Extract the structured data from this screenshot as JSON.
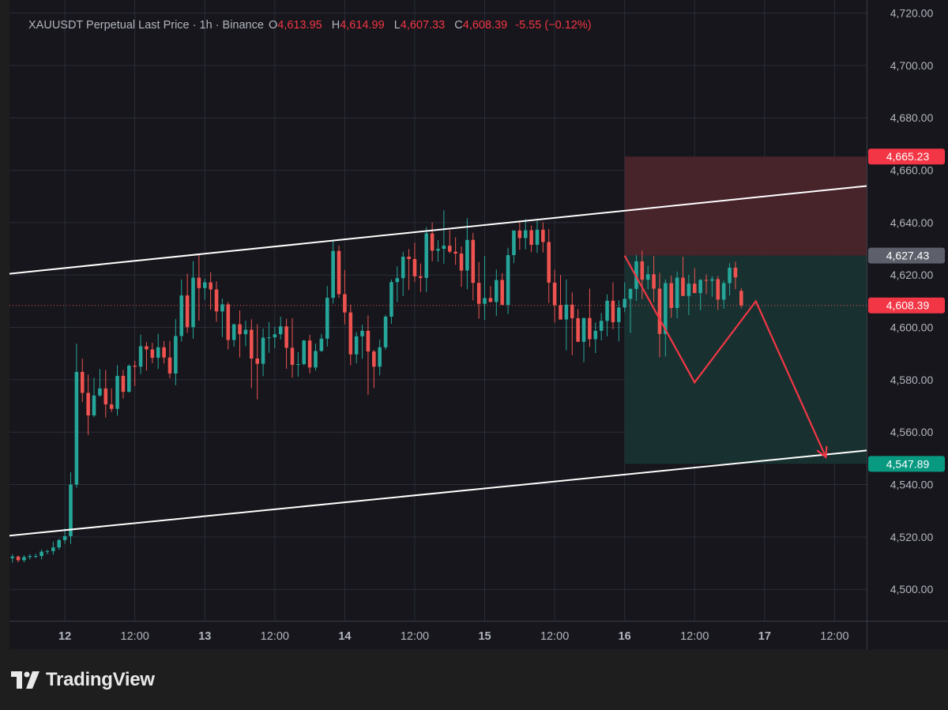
{
  "legend": {
    "symbol": "XAUUSDT Perpetual Last Price · 1h · Binance",
    "open_key": "O",
    "open": "4,613.95",
    "high_key": "H",
    "high": "4,614.99",
    "low_key": "L",
    "low": "4,607.33",
    "close_key": "C",
    "close": "4,608.39",
    "change": "-5.55 (−0.12%)"
  },
  "branding": "TradingView",
  "colors": {
    "background": "#16161c",
    "grid": "#2a2e39",
    "up": "#26a69a",
    "down": "#ef5350",
    "channel_line": "#ffffff",
    "stop_zone": "#4a242b",
    "target_zone": "#183332",
    "projection": "#f23645"
  },
  "chart_data": {
    "type": "candlestick",
    "y_axis": {
      "ylim": [
        4488,
        4725
      ],
      "ticks": [
        "4,500.00",
        "4,520.00",
        "4,540.00",
        "4,560.00",
        "4,580.00",
        "4,600.00",
        "4,620.00",
        "4,640.00",
        "4,660.00",
        "4,680.00",
        "4,700.00",
        "4,720.00"
      ],
      "tick_values": [
        4500,
        4520,
        4540,
        4560,
        4580,
        4600,
        4620,
        4640,
        4660,
        4680,
        4700,
        4720
      ]
    },
    "x_axis": {
      "labels": [
        "12",
        "12:00",
        "13",
        "12:00",
        "14",
        "12:00",
        "15",
        "12:00",
        "16",
        "12:00",
        "17",
        "12:00"
      ],
      "label_hours": [
        0,
        12,
        24,
        36,
        48,
        60,
        72,
        84,
        96,
        108,
        120,
        132
      ],
      "bold": [
        true,
        false,
        true,
        false,
        true,
        false,
        true,
        false,
        true,
        false,
        true,
        false
      ],
      "xlim_hours": [
        -9.5,
        137.5
      ]
    },
    "price_labels": [
      {
        "text": "4,665.23",
        "value": 4665.23,
        "kind": "stop"
      },
      {
        "text": "4,627.43",
        "value": 4627.43,
        "kind": "entry"
      },
      {
        "text": "4,608.39",
        "value": 4608.39,
        "kind": "last"
      },
      {
        "text": "4,547.89",
        "value": 4547.89,
        "kind": "target"
      }
    ],
    "last_price": 4608.39,
    "position": {
      "start_hour": 96,
      "end_hour": 137.5,
      "entry": 4627.43,
      "stop": 4665.23,
      "target": 4547.89
    },
    "channel": {
      "upper": [
        [
          -9.5,
          4620.5
        ],
        [
          137.5,
          4654.0
        ]
      ],
      "lower": [
        [
          -9.5,
          4520.5
        ],
        [
          137.5,
          4553.0
        ]
      ]
    },
    "projection": [
      [
        96,
        4627.4
      ],
      [
        108,
        4579
      ],
      [
        118.5,
        4610
      ],
      [
        130.5,
        4550.5
      ]
    ],
    "candles_start_hour": -9,
    "candles": [
      [
        4511.9,
        4513.4,
        4510.2,
        4512.5
      ],
      [
        4512.5,
        4512.9,
        4510.3,
        4511.1
      ],
      [
        4511.1,
        4513.0,
        4510.3,
        4512.3
      ],
      [
        4512.3,
        4513.4,
        4511.4,
        4512.7
      ],
      [
        4512.7,
        4513.6,
        4511.9,
        4512.7
      ],
      [
        4512.7,
        4515.2,
        4511.4,
        4514.4
      ],
      [
        4514.4,
        4515.1,
        4513.4,
        4514.6
      ],
      [
        4514.6,
        4518.2,
        4513.2,
        4516.0
      ],
      [
        4516.0,
        4519.3,
        4515.1,
        4518.8
      ],
      [
        4518.8,
        4523.4,
        4517.4,
        4520.3
      ],
      [
        4520.3,
        4544.7,
        4517.3,
        4540.0
      ],
      [
        4540.0,
        4593.8,
        4538.8,
        4583.0
      ],
      [
        4583.0,
        4588.1,
        4571.5,
        4575.0
      ],
      [
        4575.0,
        4582.0,
        4558.9,
        4566.4
      ],
      [
        4566.4,
        4580.8,
        4565.7,
        4574.0
      ],
      [
        4574.0,
        4584.1,
        4573.5,
        4576.7
      ],
      [
        4576.7,
        4583.7,
        4565.6,
        4570.6
      ],
      [
        4570.6,
        4576.7,
        4567.7,
        4568.9
      ],
      [
        4568.9,
        4585.6,
        4566.3,
        4581.5
      ],
      [
        4581.5,
        4583.8,
        4572.8,
        4575.4
      ],
      [
        4575.4,
        4585.9,
        4575.1,
        4585.4
      ],
      [
        4585.4,
        4587.3,
        4577.6,
        4585.0
      ],
      [
        4585.0,
        4597.3,
        4582.2,
        4592.8
      ],
      [
        4592.8,
        4594.4,
        4583.5,
        4591.6
      ],
      [
        4591.6,
        4594.1,
        4586.3,
        4588.4
      ],
      [
        4588.4,
        4597.6,
        4584.2,
        4592.4
      ],
      [
        4592.4,
        4594.8,
        4586.2,
        4588.5
      ],
      [
        4588.5,
        4594.8,
        4580.6,
        4582.4
      ],
      [
        4582.4,
        4603.2,
        4577.9,
        4596.7
      ],
      [
        4596.7,
        4618.3,
        4594.6,
        4612.2
      ],
      [
        4612.2,
        4620.5,
        4597.9,
        4600.1
      ],
      [
        4600.1,
        4625.3,
        4595.7,
        4619.0
      ],
      [
        4619.0,
        4627.8,
        4602.6,
        4615.0
      ],
      [
        4615.0,
        4618.6,
        4610.6,
        4617.2
      ],
      [
        4617.2,
        4621.1,
        4606.7,
        4614.5
      ],
      [
        4614.5,
        4617.6,
        4602.1,
        4606.1
      ],
      [
        4606.1,
        4611.0,
        4596.3,
        4608.8
      ],
      [
        4608.8,
        4609.7,
        4591.6,
        4595.2
      ],
      [
        4595.2,
        4601.4,
        4592.7,
        4601.2
      ],
      [
        4601.2,
        4606.5,
        4588.5,
        4597.4
      ],
      [
        4597.4,
        4602.6,
        4592.8,
        4599.1
      ],
      [
        4599.1,
        4603.1,
        4576.8,
        4588.1
      ],
      [
        4588.1,
        4601.2,
        4572.5,
        4586.1
      ],
      [
        4586.1,
        4599.6,
        4581.4,
        4596.1
      ],
      [
        4596.1,
        4602.1,
        4590.3,
        4596.2
      ],
      [
        4596.2,
        4600.2,
        4592.0,
        4597.4
      ],
      [
        4597.4,
        4604.1,
        4595.4,
        4600.4
      ],
      [
        4600.4,
        4603.3,
        4584.2,
        4592.2
      ],
      [
        4592.2,
        4603.5,
        4580.8,
        4585.7
      ],
      [
        4585.7,
        4590.6,
        4581.2,
        4586.0
      ],
      [
        4586.0,
        4595.2,
        4585.5,
        4595.0
      ],
      [
        4595.0,
        4597.2,
        4582.4,
        4584.7
      ],
      [
        4584.7,
        4593.8,
        4583.5,
        4591.0
      ],
      [
        4591.0,
        4597.5,
        4590.6,
        4595.7
      ],
      [
        4595.7,
        4615.8,
        4592.7,
        4611.3
      ],
      [
        4611.3,
        4633.1,
        4609.1,
        4629.2
      ],
      [
        4629.2,
        4631.2,
        4611.3,
        4612.7
      ],
      [
        4612.7,
        4621.9,
        4601.2,
        4605.7
      ],
      [
        4605.7,
        4608.7,
        4585.5,
        4589.7
      ],
      [
        4589.7,
        4598.2,
        4586.3,
        4596.6
      ],
      [
        4596.6,
        4601.0,
        4588.0,
        4598.7
      ],
      [
        4598.7,
        4604.6,
        4574.2,
        4590.8
      ],
      [
        4590.8,
        4591.4,
        4576.9,
        4585.0
      ],
      [
        4585.0,
        4595.3,
        4581.7,
        4592.4
      ],
      [
        4592.4,
        4604.8,
        4591.5,
        4604.1
      ],
      [
        4604.1,
        4618.3,
        4601.4,
        4617.3
      ],
      [
        4617.3,
        4623.3,
        4609.7,
        4618.8
      ],
      [
        4618.8,
        4628.9,
        4612.0,
        4627.0
      ],
      [
        4627.0,
        4629.9,
        4614.3,
        4626.1
      ],
      [
        4626.1,
        4632.3,
        4617.3,
        4619.5
      ],
      [
        4619.5,
        4624.4,
        4613.5,
        4618.9
      ],
      [
        4618.9,
        4638.3,
        4613.5,
        4635.9
      ],
      [
        4635.9,
        4640.1,
        4625.2,
        4629.3
      ],
      [
        4629.3,
        4633.3,
        4625.1,
        4630.0
      ],
      [
        4630.0,
        4644.7,
        4624.3,
        4631.2
      ],
      [
        4631.2,
        4637.1,
        4628.3,
        4628.9
      ],
      [
        4628.9,
        4634.4,
        4623.9,
        4628.2
      ],
      [
        4628.2,
        4630.9,
        4615.5,
        4621.7
      ],
      [
        4621.7,
        4641.7,
        4614.6,
        4633.4
      ],
      [
        4633.4,
        4636.1,
        4610.3,
        4617.0
      ],
      [
        4617.0,
        4625.0,
        4603.3,
        4609.0
      ],
      [
        4609.0,
        4627.3,
        4602.9,
        4611.2
      ],
      [
        4611.2,
        4615.8,
        4609.6,
        4609.7
      ],
      [
        4609.7,
        4622.1,
        4604.4,
        4618.1
      ],
      [
        4618.1,
        4620.7,
        4609.3,
        4608.6
      ],
      [
        4608.6,
        4630.4,
        4605.1,
        4627.6
      ],
      [
        4627.6,
        4635.6,
        4624.5,
        4637.0
      ],
      [
        4637.0,
        4640.3,
        4629.6,
        4634.1
      ],
      [
        4634.1,
        4641.4,
        4629.8,
        4637.1
      ],
      [
        4637.1,
        4638.9,
        4628.7,
        4631.5
      ],
      [
        4631.5,
        4640.7,
        4628.4,
        4637.3
      ],
      [
        4637.3,
        4640.1,
        4628.6,
        4632.6
      ],
      [
        4632.6,
        4637.6,
        4609.3,
        4617.1
      ],
      [
        4617.1,
        4622.0,
        4601.9,
        4608.5
      ],
      [
        4608.5,
        4620.0,
        4603.4,
        4603.0
      ],
      [
        4603.0,
        4618.3,
        4591.2,
        4608.7
      ],
      [
        4608.7,
        4613.4,
        4589.4,
        4603.5
      ],
      [
        4603.5,
        4607.0,
        4596.2,
        4594.5
      ],
      [
        4594.5,
        4603.6,
        4586.7,
        4603.6
      ],
      [
        4603.6,
        4614.8,
        4592.5,
        4595.5
      ],
      [
        4595.5,
        4601.9,
        4590.2,
        4598.7
      ],
      [
        4598.7,
        4605.5,
        4595.1,
        4602.5
      ],
      [
        4602.5,
        4612.6,
        4596.6,
        4610.2
      ],
      [
        4610.2,
        4617.2,
        4599.3,
        4602.0
      ],
      [
        4602.0,
        4610.4,
        4594.7,
        4607.6
      ],
      [
        4607.6,
        4617.2,
        4605.8,
        4610.9
      ],
      [
        4610.9,
        4614.9,
        4597.9,
        4614.7
      ],
      [
        4614.7,
        4627.6,
        4610.1,
        4625.2
      ],
      [
        4625.2,
        4629.3,
        4610.8,
        4618.2
      ],
      [
        4618.2,
        4623.5,
        4614.6,
        4620.3
      ],
      [
        4620.3,
        4627.2,
        4609.6,
        4614.8
      ],
      [
        4614.8,
        4620.8,
        4588.6,
        4597.5
      ],
      [
        4597.5,
        4618.3,
        4588.9,
        4616.9
      ],
      [
        4616.9,
        4619.8,
        4603.7,
        4607.4
      ],
      [
        4607.4,
        4621.3,
        4603.5,
        4619.0
      ],
      [
        4619.0,
        4627.0,
        4612.1,
        4612.0
      ],
      [
        4612.0,
        4620.1,
        4604.7,
        4616.7
      ],
      [
        4616.7,
        4622.6,
        4614.0,
        4613.1
      ],
      [
        4613.1,
        4618.5,
        4606.6,
        4618.1
      ],
      [
        4618.1,
        4620.2,
        4612.7,
        4617.8
      ],
      [
        4617.8,
        4619.5,
        4611.7,
        4618.4
      ],
      [
        4618.4,
        4619.6,
        4606.7,
        4610.6
      ],
      [
        4610.6,
        4617.8,
        4607.2,
        4616.9
      ],
      [
        4616.9,
        4624.5,
        4612.2,
        4622.8
      ],
      [
        4622.8,
        4625.1,
        4614.6,
        4619.1
      ],
      [
        4613.95,
        4614.99,
        4607.33,
        4608.39
      ]
    ]
  }
}
